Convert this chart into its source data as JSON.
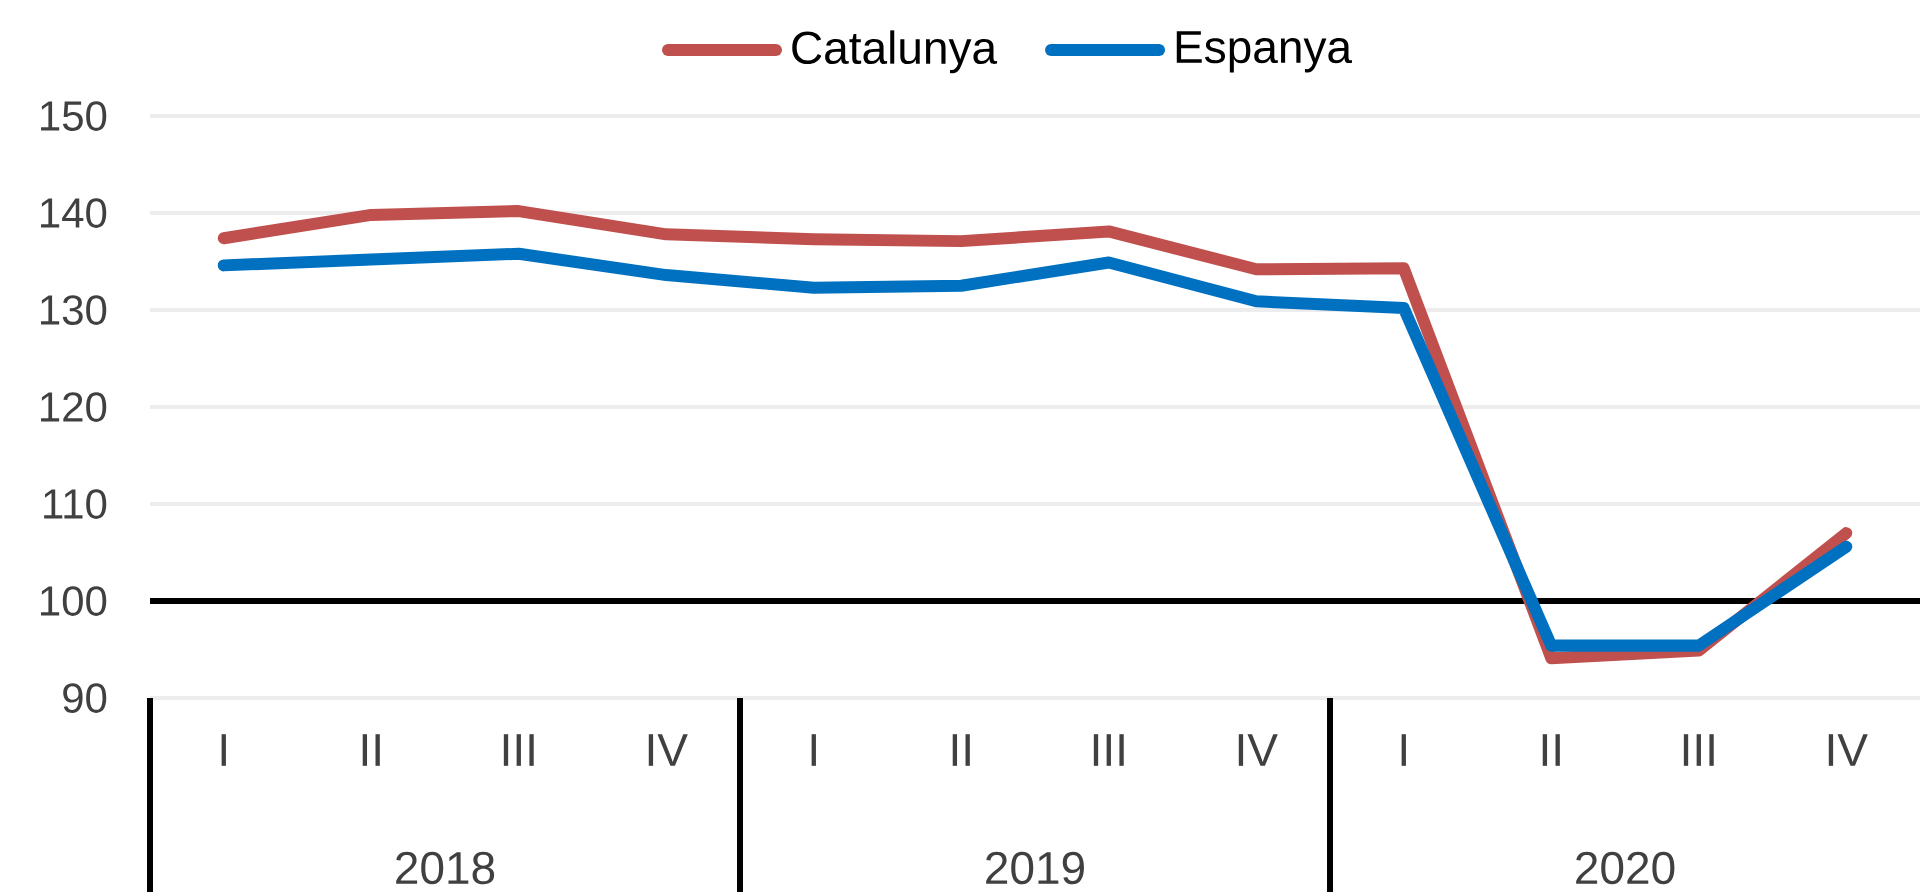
{
  "chart_data": {
    "type": "line",
    "categories": [
      "I",
      "II",
      "III",
      "IV",
      "I",
      "II",
      "III",
      "IV",
      "I",
      "II",
      "III",
      "IV"
    ],
    "annotations": [
      "2018",
      "2019",
      "2020"
    ],
    "series": [
      {
        "name": "Catalunya",
        "color": "#c0504d",
        "values": [
          137.4,
          139.8,
          140.2,
          137.8,
          137.3,
          137.1,
          138.1,
          134.2,
          134.3,
          94.1,
          94.9,
          107.0
        ]
      },
      {
        "name": "Espanya",
        "color": "#0070c0",
        "values": [
          134.6,
          135.2,
          135.8,
          133.6,
          132.3,
          132.5,
          134.9,
          130.9,
          130.2,
          95.4,
          95.4,
          105.6
        ]
      }
    ],
    "ylim": [
      90,
      150
    ],
    "yticks": [
      90,
      100,
      110,
      120,
      130,
      140,
      150
    ],
    "grid": "y",
    "legend": "top",
    "marker": "none",
    "line_style": "solid",
    "ref_lines": [
      {
        "axis": "y",
        "value": 100,
        "color": "#000000"
      }
    ]
  }
}
